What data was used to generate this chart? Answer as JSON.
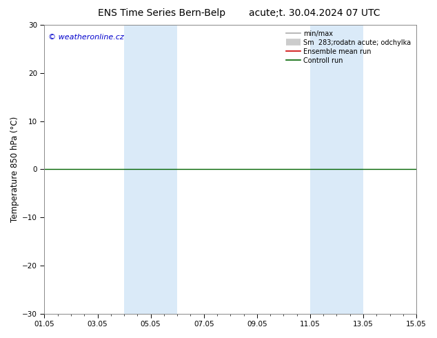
{
  "title_left": "ENS Time Series Bern-Belp",
  "title_right": "acute;t. 30.04.2024 07 UTC",
  "ylabel": "Temperature 850 hPa (°C)",
  "ylim": [
    -30,
    30
  ],
  "yticks": [
    -30,
    -20,
    -10,
    0,
    10,
    20,
    30
  ],
  "xtick_labels": [
    "01.05",
    "03.05",
    "05.05",
    "07.05",
    "09.05",
    "11.05",
    "13.05",
    "15.05"
  ],
  "xtick_positions": [
    0,
    2,
    4,
    6,
    8,
    10,
    12,
    14
  ],
  "xlim": [
    0,
    14
  ],
  "shade_regions": [
    {
      "xmin": 3.0,
      "xmax": 5.0,
      "color": "#daeaf8"
    },
    {
      "xmin": 10.0,
      "xmax": 12.0,
      "color": "#daeaf8"
    }
  ],
  "hline_y": 0,
  "hline_color": "#006400",
  "watermark": "© weatheronline.cz",
  "legend_entries": [
    {
      "label": "min/max",
      "color": "#aaaaaa",
      "lw": 1.2
    },
    {
      "label": "Sm  283;rodatn acute; odchylka",
      "color": "#cccccc",
      "lw": 6
    },
    {
      "label": "Ensemble mean run",
      "color": "#cc0000",
      "lw": 1.2
    },
    {
      "label": "Controll run",
      "color": "#006400",
      "lw": 1.2
    }
  ],
  "bg_color": "#ffffff",
  "plot_bg_color": "#ffffff",
  "title_fontsize": 10,
  "tick_fontsize": 7.5,
  "ylabel_fontsize": 8.5,
  "watermark_color": "#0000cc",
  "watermark_fontsize": 8
}
